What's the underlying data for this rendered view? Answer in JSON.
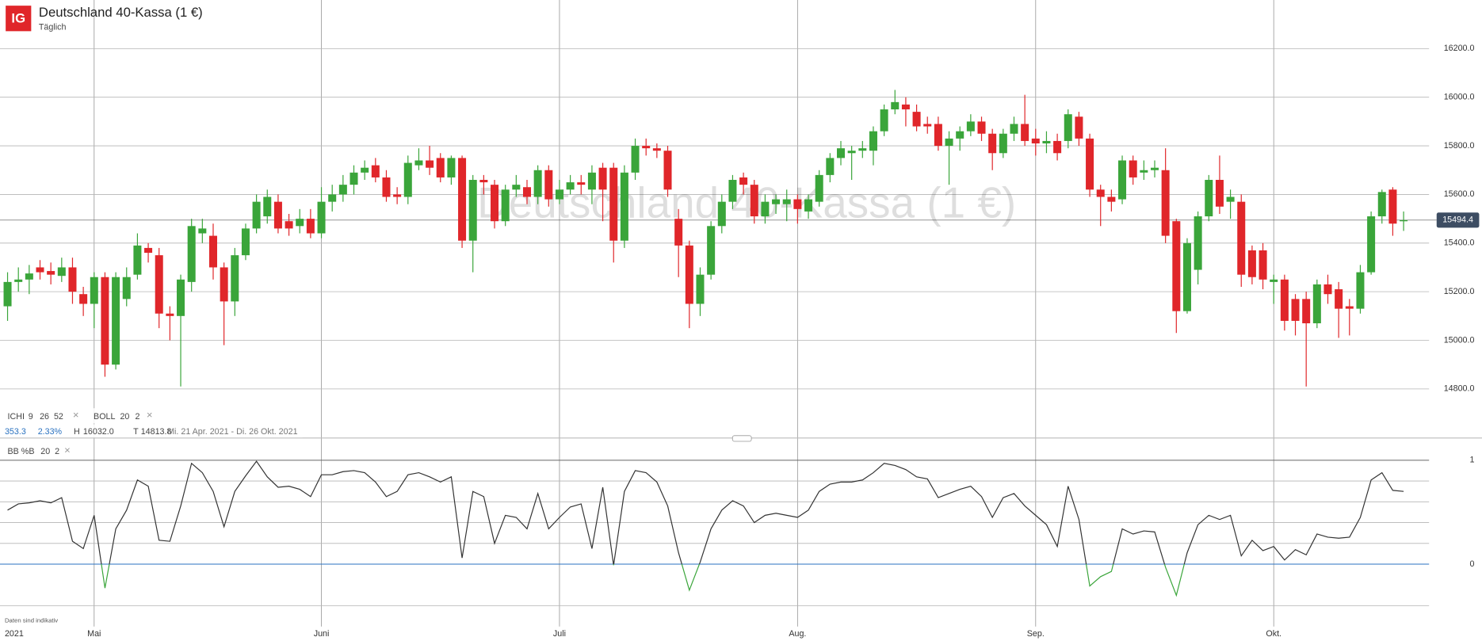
{
  "header": {
    "logo": "IG",
    "title": "Deutschland 40-Kassa (1 €)",
    "subtitle": "Täglich"
  },
  "indicators": [
    {
      "name": "ICHI",
      "params": [
        9,
        26,
        52
      ]
    },
    {
      "name": "BOLL",
      "params": [
        20,
        2
      ]
    }
  ],
  "stats": {
    "change": 353.3,
    "change_pct": {
      "value": 2.33,
      "label": "2.33%"
    },
    "high_label": "H",
    "high": {
      "value": 16032.0,
      "label": "16032.0"
    },
    "low_label": "T",
    "low": 14813.8,
    "range": "Mi. 21 Apr. 2021 - Di. 26 Okt. 2021"
  },
  "footer": {
    "note": "Daten sind indikativ",
    "year": "2021"
  },
  "chart_data": [
    {
      "type": "candlestick",
      "up_color": "#3aa53a",
      "down_color": "#e0262a",
      "grid": true,
      "categories": [
        null,
        null,
        null,
        null,
        null,
        null,
        null,
        null,
        "Mai",
        null,
        null,
        null,
        null,
        null,
        null,
        null,
        null,
        null,
        null,
        null,
        null,
        null,
        null,
        null,
        null,
        null,
        null,
        null,
        null,
        "Juni",
        null,
        null,
        null,
        null,
        null,
        null,
        null,
        null,
        null,
        null,
        null,
        null,
        null,
        null,
        null,
        null,
        null,
        null,
        null,
        null,
        null,
        "Juli",
        null,
        null,
        null,
        null,
        null,
        null,
        null,
        null,
        null,
        null,
        null,
        null,
        null,
        null,
        null,
        null,
        null,
        null,
        null,
        null,
        null,
        "Aug.",
        null,
        null,
        null,
        null,
        null,
        null,
        null,
        null,
        null,
        null,
        null,
        null,
        null,
        null,
        null,
        null,
        null,
        null,
        null,
        null,
        null,
        "Sep.",
        null,
        null,
        null,
        null,
        null,
        null,
        null,
        null,
        null,
        null,
        null,
        null,
        null,
        null,
        null,
        null,
        null,
        null,
        null,
        null,
        null,
        "Okt.",
        null,
        null,
        null,
        null,
        null,
        null,
        null,
        null,
        null,
        null,
        null,
        null
      ],
      "open": [
        15140,
        15240,
        15250,
        15300,
        15285,
        15265,
        15300,
        15190,
        15150,
        15260,
        14900,
        15170,
        15270,
        15380,
        15350,
        15110,
        15100,
        15240,
        15440,
        15430,
        15300,
        15160,
        15350,
        15460,
        15510,
        15570,
        15490,
        15470,
        15500,
        15440,
        15570,
        15600,
        15640,
        15690,
        15720,
        15670,
        15600,
        15590,
        15720,
        15740,
        15750,
        15670,
        15750,
        15410,
        15660,
        15640,
        15490,
        15620,
        15630,
        15590,
        15700,
        15580,
        15620,
        15650,
        15620,
        15710,
        15710,
        15410,
        15690,
        15800,
        15790,
        15780,
        15500,
        15390,
        15150,
        15270,
        15470,
        15570,
        15670,
        15640,
        15510,
        15560,
        15560,
        15580,
        15530,
        15570,
        15680,
        15750,
        15770,
        15780,
        15780,
        15860,
        15950,
        15970,
        15940,
        15890,
        15890,
        15800,
        15830,
        15860,
        15900,
        15850,
        15770,
        15850,
        15890,
        15830,
        15810,
        15820,
        15820,
        15920,
        15830,
        15620,
        15590,
        15580,
        15740,
        15690,
        15700,
        15700,
        15490,
        15120,
        15290,
        15510,
        15660,
        15570,
        15570,
        15370,
        15370,
        15240,
        15250,
        15170,
        15170,
        15070,
        15230,
        15210,
        15140,
        15130,
        15280,
        15510,
        15620,
        15490
      ],
      "high": [
        15280,
        15300,
        15310,
        15330,
        15320,
        15340,
        15340,
        15220,
        15280,
        15280,
        15280,
        15300,
        15440,
        15400,
        15380,
        15140,
        15270,
        15500,
        15500,
        15480,
        15320,
        15380,
        15480,
        15600,
        15620,
        15600,
        15520,
        15540,
        15540,
        15630,
        15640,
        15680,
        15720,
        15740,
        15750,
        15700,
        15630,
        15760,
        15790,
        15800,
        15770,
        15760,
        15760,
        15680,
        15680,
        15660,
        15640,
        15680,
        15660,
        15720,
        15720,
        15660,
        15680,
        15680,
        15720,
        15730,
        15730,
        15720,
        15830,
        15830,
        15810,
        15800,
        15540,
        15410,
        15300,
        15490,
        15600,
        15680,
        15690,
        15660,
        15600,
        15600,
        15620,
        15600,
        15600,
        15700,
        15770,
        15820,
        15800,
        15820,
        15880,
        15970,
        16030,
        16000,
        15970,
        15920,
        15920,
        15860,
        15880,
        15930,
        15920,
        15870,
        15870,
        15920,
        16010,
        15870,
        15860,
        15850,
        15950,
        15940,
        15850,
        15640,
        15620,
        15760,
        15760,
        15740,
        15740,
        15790,
        15500,
        15420,
        15530,
        15680,
        15760,
        15620,
        15600,
        15390,
        15400,
        15270,
        15270,
        15190,
        15200,
        15250,
        15270,
        15240,
        15170,
        15310,
        15530,
        15620,
        15630,
        15530
      ],
      "low": [
        15080,
        15200,
        15190,
        15250,
        15230,
        15240,
        15150,
        15100,
        15050,
        14850,
        14880,
        15140,
        15250,
        15320,
        15050,
        15000,
        14810,
        15200,
        15400,
        15250,
        14980,
        15100,
        15330,
        15440,
        15480,
        15440,
        15430,
        15440,
        15420,
        15420,
        15530,
        15570,
        15600,
        15660,
        15650,
        15570,
        15560,
        15560,
        15700,
        15680,
        15650,
        15640,
        15380,
        15280,
        15600,
        15460,
        15470,
        15590,
        15560,
        15560,
        15550,
        15560,
        15600,
        15600,
        15560,
        15490,
        15320,
        15380,
        15660,
        15760,
        15750,
        15590,
        15260,
        15050,
        15100,
        15250,
        15440,
        15540,
        15600,
        15480,
        15480,
        15520,
        15490,
        15480,
        15500,
        15550,
        15650,
        15720,
        15660,
        15750,
        15720,
        15840,
        15930,
        15880,
        15860,
        15850,
        15780,
        15640,
        15780,
        15840,
        15820,
        15700,
        15750,
        15820,
        15800,
        15760,
        15770,
        15740,
        15790,
        15800,
        15590,
        15470,
        15530,
        15560,
        15640,
        15660,
        15670,
        15400,
        15030,
        15110,
        15230,
        15490,
        15520,
        15500,
        15220,
        15230,
        15210,
        15150,
        15040,
        15020,
        14810,
        15050,
        15150,
        15010,
        15020,
        15110,
        15270,
        15480,
        15430,
        15450
      ],
      "close": [
        15240,
        15250,
        15275,
        15280,
        15270,
        15300,
        15200,
        15150,
        15260,
        14900,
        15260,
        15260,
        15390,
        15360,
        15110,
        15100,
        15250,
        15470,
        15460,
        15300,
        15160,
        15350,
        15460,
        15570,
        15590,
        15460,
        15460,
        15500,
        15440,
        15570,
        15600,
        15640,
        15690,
        15710,
        15670,
        15590,
        15590,
        15730,
        15740,
        15710,
        15670,
        15750,
        15410,
        15660,
        15650,
        15490,
        15620,
        15640,
        15590,
        15700,
        15580,
        15620,
        15650,
        15640,
        15690,
        15620,
        15410,
        15690,
        15800,
        15790,
        15780,
        15620,
        15390,
        15150,
        15270,
        15470,
        15570,
        15660,
        15640,
        15510,
        15570,
        15580,
        15580,
        15540,
        15580,
        15680,
        15750,
        15790,
        15780,
        15790,
        15860,
        15950,
        15980,
        15950,
        15880,
        15880,
        15800,
        15830,
        15860,
        15900,
        15850,
        15770,
        15850,
        15890,
        15820,
        15810,
        15820,
        15770,
        15930,
        15830,
        15620,
        15590,
        15570,
        15740,
        15670,
        15700,
        15710,
        15430,
        15120,
        15400,
        15510,
        15660,
        15550,
        15590,
        15270,
        15260,
        15250,
        15250,
        15080,
        15080,
        15070,
        15230,
        15190,
        15130,
        15130,
        15280,
        15510,
        15610,
        15480,
        15494.4
      ],
      "ylim": [
        14600,
        16400
      ],
      "yticks": [
        {
          "value": 14800,
          "label": "14800.0"
        },
        {
          "value": 15000,
          "label": "15000.0"
        },
        {
          "value": 15200,
          "label": "15200.0"
        },
        {
          "value": 15400,
          "label": "15400.0"
        },
        {
          "value": 15600,
          "label": "15600.0"
        },
        {
          "value": 15800,
          "label": "15800.0"
        },
        {
          "value": 16000,
          "label": "16000.0"
        },
        {
          "value": 16200,
          "label": "16200.0"
        }
      ]
    },
    {
      "type": "line",
      "title": "BB %B",
      "params": [
        20,
        2
      ],
      "color": "#333333",
      "below_zero_color": "#3aa53a",
      "values": [
        0.52,
        0.58,
        0.59,
        0.61,
        0.59,
        0.64,
        0.22,
        0.15,
        0.47,
        -0.23,
        0.34,
        0.52,
        0.81,
        0.75,
        0.23,
        0.22,
        0.56,
        0.97,
        0.88,
        0.7,
        0.36,
        0.7,
        0.85,
        0.99,
        0.84,
        0.74,
        0.75,
        0.72,
        0.65,
        0.86,
        0.86,
        0.89,
        0.9,
        0.88,
        0.79,
        0.65,
        0.7,
        0.86,
        0.88,
        0.84,
        0.79,
        0.84,
        0.06,
        0.7,
        0.65,
        0.2,
        0.47,
        0.45,
        0.34,
        0.68,
        0.34,
        0.45,
        0.55,
        0.58,
        0.15,
        0.74,
        -0.01,
        0.7,
        0.9,
        0.88,
        0.79,
        0.56,
        0.11,
        -0.25,
        0.02,
        0.34,
        0.52,
        0.61,
        0.56,
        0.4,
        0.47,
        0.49,
        0.47,
        0.45,
        0.52,
        0.7,
        0.77,
        0.79,
        0.79,
        0.81,
        0.88,
        0.97,
        0.95,
        0.91,
        0.84,
        0.82,
        0.64,
        0.68,
        0.72,
        0.75,
        0.65,
        0.45,
        0.64,
        0.68,
        0.56,
        0.47,
        0.38,
        0.17,
        0.75,
        0.43,
        -0.21,
        -0.12,
        -0.07,
        0.34,
        0.29,
        0.32,
        0.31,
        -0.03,
        -0.3,
        0.11,
        0.38,
        0.47,
        0.43,
        0.47,
        0.08,
        0.23,
        0.13,
        0.17,
        0.04,
        0.14,
        0.09,
        0.29,
        0.26,
        0.25,
        0.26,
        0.45,
        0.81,
        0.88,
        0.71,
        0.7
      ],
      "ylim": [
        -0.6,
        1.2
      ],
      "yticks": [
        0,
        1
      ],
      "grid_lines": [
        -0.4,
        0.2,
        0.4,
        0.6,
        0.8
      ]
    }
  ]
}
